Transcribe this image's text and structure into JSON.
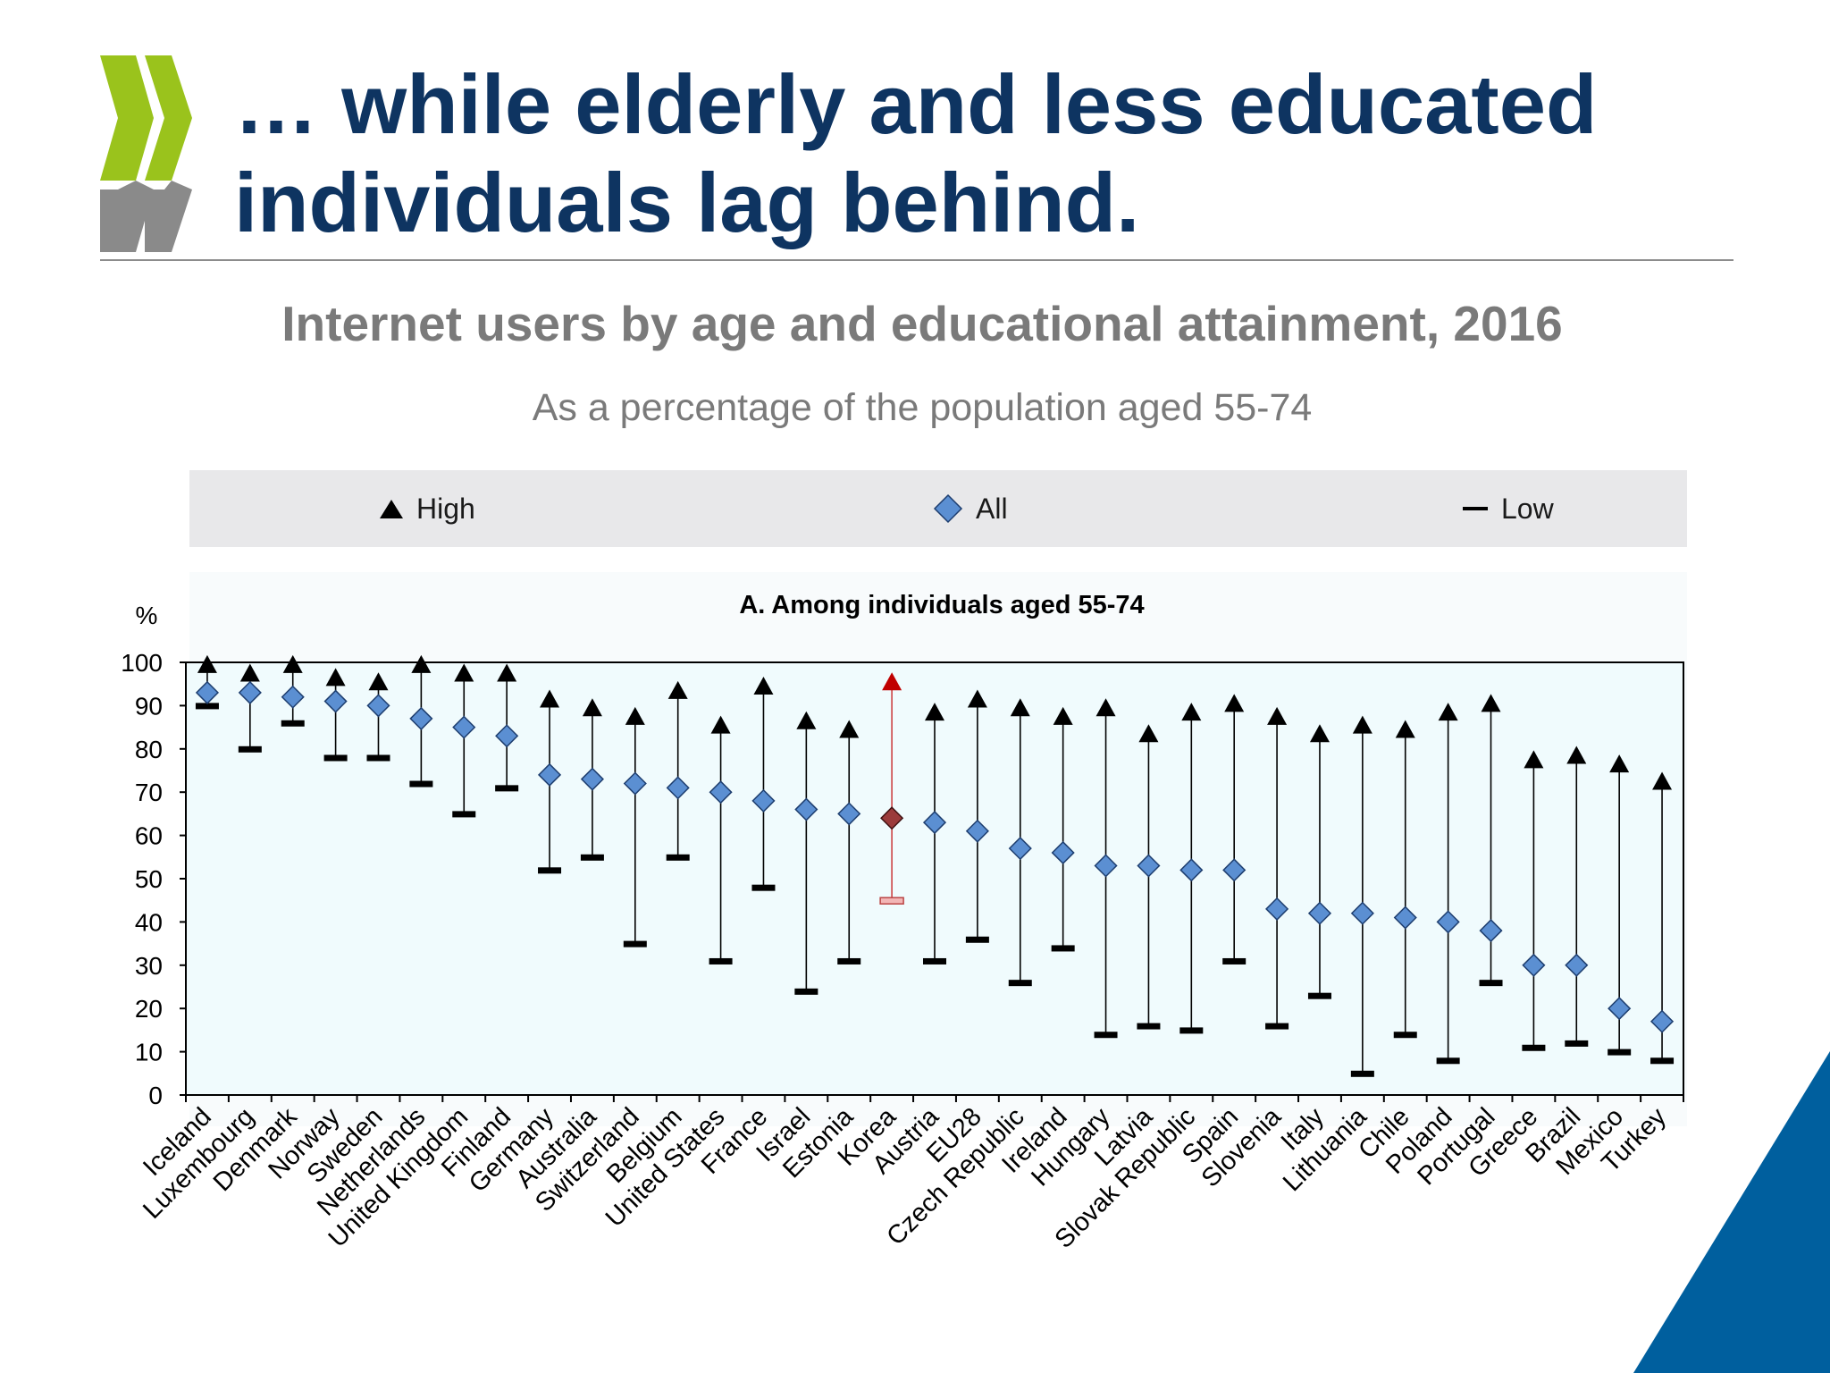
{
  "slide": {
    "title": "… while elderly and less educated individuals lag behind."
  },
  "chart_heading": "Internet users by age and educational attainment, 2016",
  "chart_subheading": "As a percentage of the population aged 55-74",
  "legend": {
    "high": "High",
    "all": "All",
    "low": "Low"
  },
  "colors": {
    "title": "#0e3461",
    "all_marker": "#5b8fd2",
    "highlight_all": "#9b3b3b",
    "highlight_high": "#c00000",
    "highlight_low": "#f2b6b6",
    "plot_area": "#f0fbfd",
    "logo_green": "#9ac31c",
    "logo_grey": "#8a8a8a",
    "corner_blue": "#005f9e"
  },
  "icons": {
    "logo": "oecd-chevron-logo"
  },
  "chart_data": {
    "type": "range-dot",
    "title": "A. Among individuals aged 55-74",
    "ylabel": "%",
    "ylim": [
      0,
      100
    ],
    "yticks": [
      0,
      10,
      20,
      30,
      40,
      50,
      60,
      70,
      80,
      90,
      100
    ],
    "legend_position": "top",
    "highlight": "Korea",
    "categories": [
      "Iceland",
      "Luxembourg",
      "Denmark",
      "Norway",
      "Sweden",
      "Netherlands",
      "United Kingdom",
      "Finland",
      "Germany",
      "Australia",
      "Switzerland",
      "Belgium",
      "United States",
      "France",
      "Israel",
      "Estonia",
      "Korea",
      "Austria",
      "EU28",
      "Czech Republic",
      "Ireland",
      "Hungary",
      "Latvia",
      "Slovak Republic",
      "Spain",
      "Slovenia",
      "Italy",
      "Lithuania",
      "Chile",
      "Poland",
      "Portugal",
      "Greece",
      "Brazil",
      "Mexico",
      "Turkey"
    ],
    "series": [
      {
        "name": "High",
        "values": [
          99,
          97,
          99,
          96,
          95,
          99,
          97,
          97,
          91,
          89,
          87,
          93,
          85,
          94,
          86,
          84,
          95,
          88,
          91,
          89,
          87,
          89,
          83,
          88,
          90,
          87,
          83,
          85,
          84,
          88,
          90,
          77,
          78,
          76,
          72
        ]
      },
      {
        "name": "All",
        "values": [
          93,
          93,
          92,
          91,
          90,
          87,
          85,
          83,
          74,
          73,
          72,
          71,
          70,
          68,
          66,
          65,
          64,
          63,
          61,
          57,
          56,
          53,
          53,
          52,
          52,
          43,
          42,
          42,
          41,
          40,
          38,
          30,
          30,
          20,
          17
        ]
      },
      {
        "name": "Low",
        "values": [
          90,
          80,
          86,
          78,
          78,
          72,
          65,
          71,
          52,
          55,
          35,
          55,
          31,
          48,
          24,
          31,
          45,
          31,
          36,
          26,
          34,
          14,
          16,
          15,
          31,
          16,
          23,
          5,
          14,
          8,
          26,
          11,
          12,
          10,
          8
        ]
      }
    ]
  }
}
